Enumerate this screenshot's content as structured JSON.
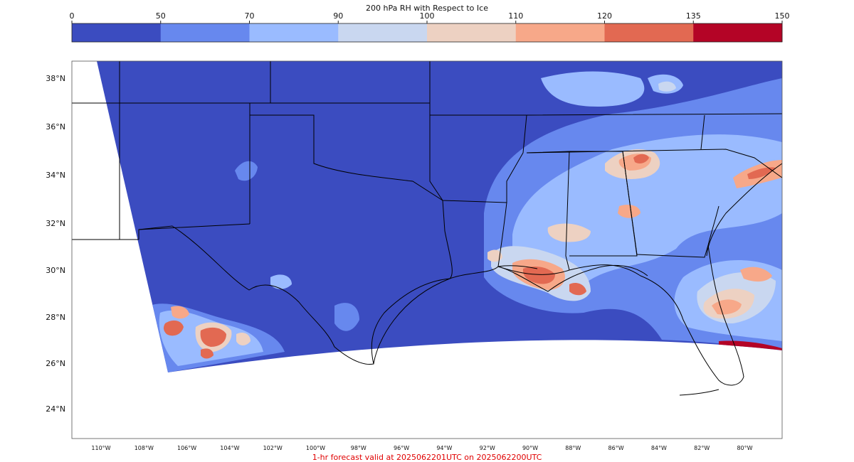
{
  "title": "200 hPa RH with Respect to Ice",
  "colorbar": {
    "ticks": [
      "0",
      "50",
      "70",
      "90",
      "100",
      "110",
      "120",
      "135",
      "150"
    ],
    "colors": [
      "#3b4cc0",
      "#6788ee",
      "#9abbff",
      "#c9d7f0",
      "#edd1c2",
      "#f7a889",
      "#e26952",
      "#b40426"
    ]
  },
  "lat_labels": [
    "38°N",
    "36°N",
    "34°N",
    "32°N",
    "30°N",
    "28°N",
    "26°N",
    "24°N"
  ],
  "lon_labels": [
    "110°W",
    "108°W",
    "106°W",
    "104°W",
    "102°W",
    "100°W",
    "98°W",
    "96°W",
    "94°W",
    "92°W",
    "90°W",
    "88°W",
    "86°W",
    "84°W",
    "82°W",
    "80°W"
  ],
  "footer": "1-hr forecast valid at 2025062201UTC on 2025062200UTC",
  "map_colors": {
    "background": "#3b4cc0",
    "borders": "#000000"
  }
}
